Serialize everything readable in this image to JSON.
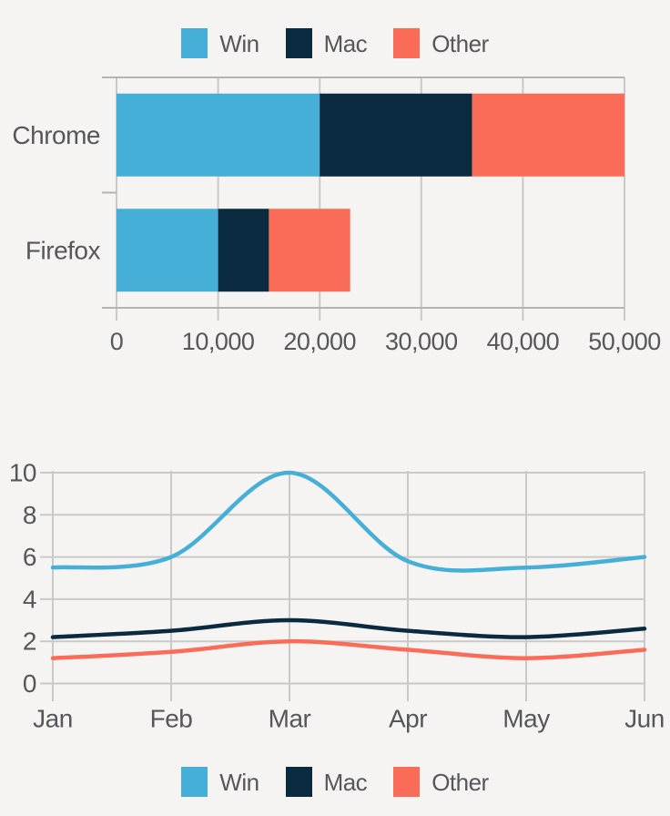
{
  "theme": {
    "background": "#F5F4F3",
    "grid_color": "#C9C9C9",
    "axis_color": "#B3B3B3",
    "text_color": "#56575A",
    "win_color": "#46AFD8",
    "mac_color": "#0A2A40",
    "other_color": "#FB6C58"
  },
  "legend": {
    "items": [
      {
        "label": "Win",
        "color": "#46AFD8"
      },
      {
        "label": "Mac",
        "color": "#0A2A40"
      },
      {
        "label": "Other",
        "color": "#FB6C58"
      }
    ]
  },
  "chart_data": [
    {
      "type": "bar",
      "orientation": "horizontal",
      "stacked": true,
      "title": "",
      "xlabel": "",
      "ylabel": "",
      "categories": [
        "Chrome",
        "Firefox"
      ],
      "series": [
        {
          "name": "Win",
          "color": "#46AFD8",
          "values": [
            20000,
            10000
          ]
        },
        {
          "name": "Mac",
          "color": "#0A2A40",
          "values": [
            15000,
            5000
          ]
        },
        {
          "name": "Other",
          "color": "#FB6C58",
          "values": [
            15000,
            8000
          ]
        }
      ],
      "totals": [
        50000,
        23000
      ],
      "xlim": [
        0,
        50000
      ],
      "x_ticks": [
        0,
        10000,
        20000,
        30000,
        40000,
        50000
      ],
      "x_tick_labels": [
        "0",
        "10,000",
        "20,000",
        "30,000",
        "40,000",
        "50,000"
      ],
      "grid": true,
      "legend_position": "top"
    },
    {
      "type": "line",
      "title": "",
      "xlabel": "",
      "ylabel": "",
      "smooth": true,
      "x": [
        "Jan",
        "Feb",
        "Mar",
        "Apr",
        "May",
        "Jun"
      ],
      "series": [
        {
          "name": "Win",
          "color": "#46AFD8",
          "values": [
            5.5,
            6,
            10,
            5.8,
            5.5,
            6
          ]
        },
        {
          "name": "Mac",
          "color": "#0A2A40",
          "values": [
            2.2,
            2.5,
            3,
            2.5,
            2.2,
            2.6
          ]
        },
        {
          "name": "Other",
          "color": "#FB6C58",
          "values": [
            1.2,
            1.5,
            2,
            1.6,
            1.2,
            1.6
          ]
        }
      ],
      "ylim": [
        0,
        10
      ],
      "y_ticks": [
        0,
        2,
        4,
        6,
        8,
        10
      ],
      "y_tick_labels": [
        "0",
        "2",
        "4",
        "6",
        "8",
        "10"
      ],
      "grid": true,
      "legend_position": "bottom"
    }
  ]
}
